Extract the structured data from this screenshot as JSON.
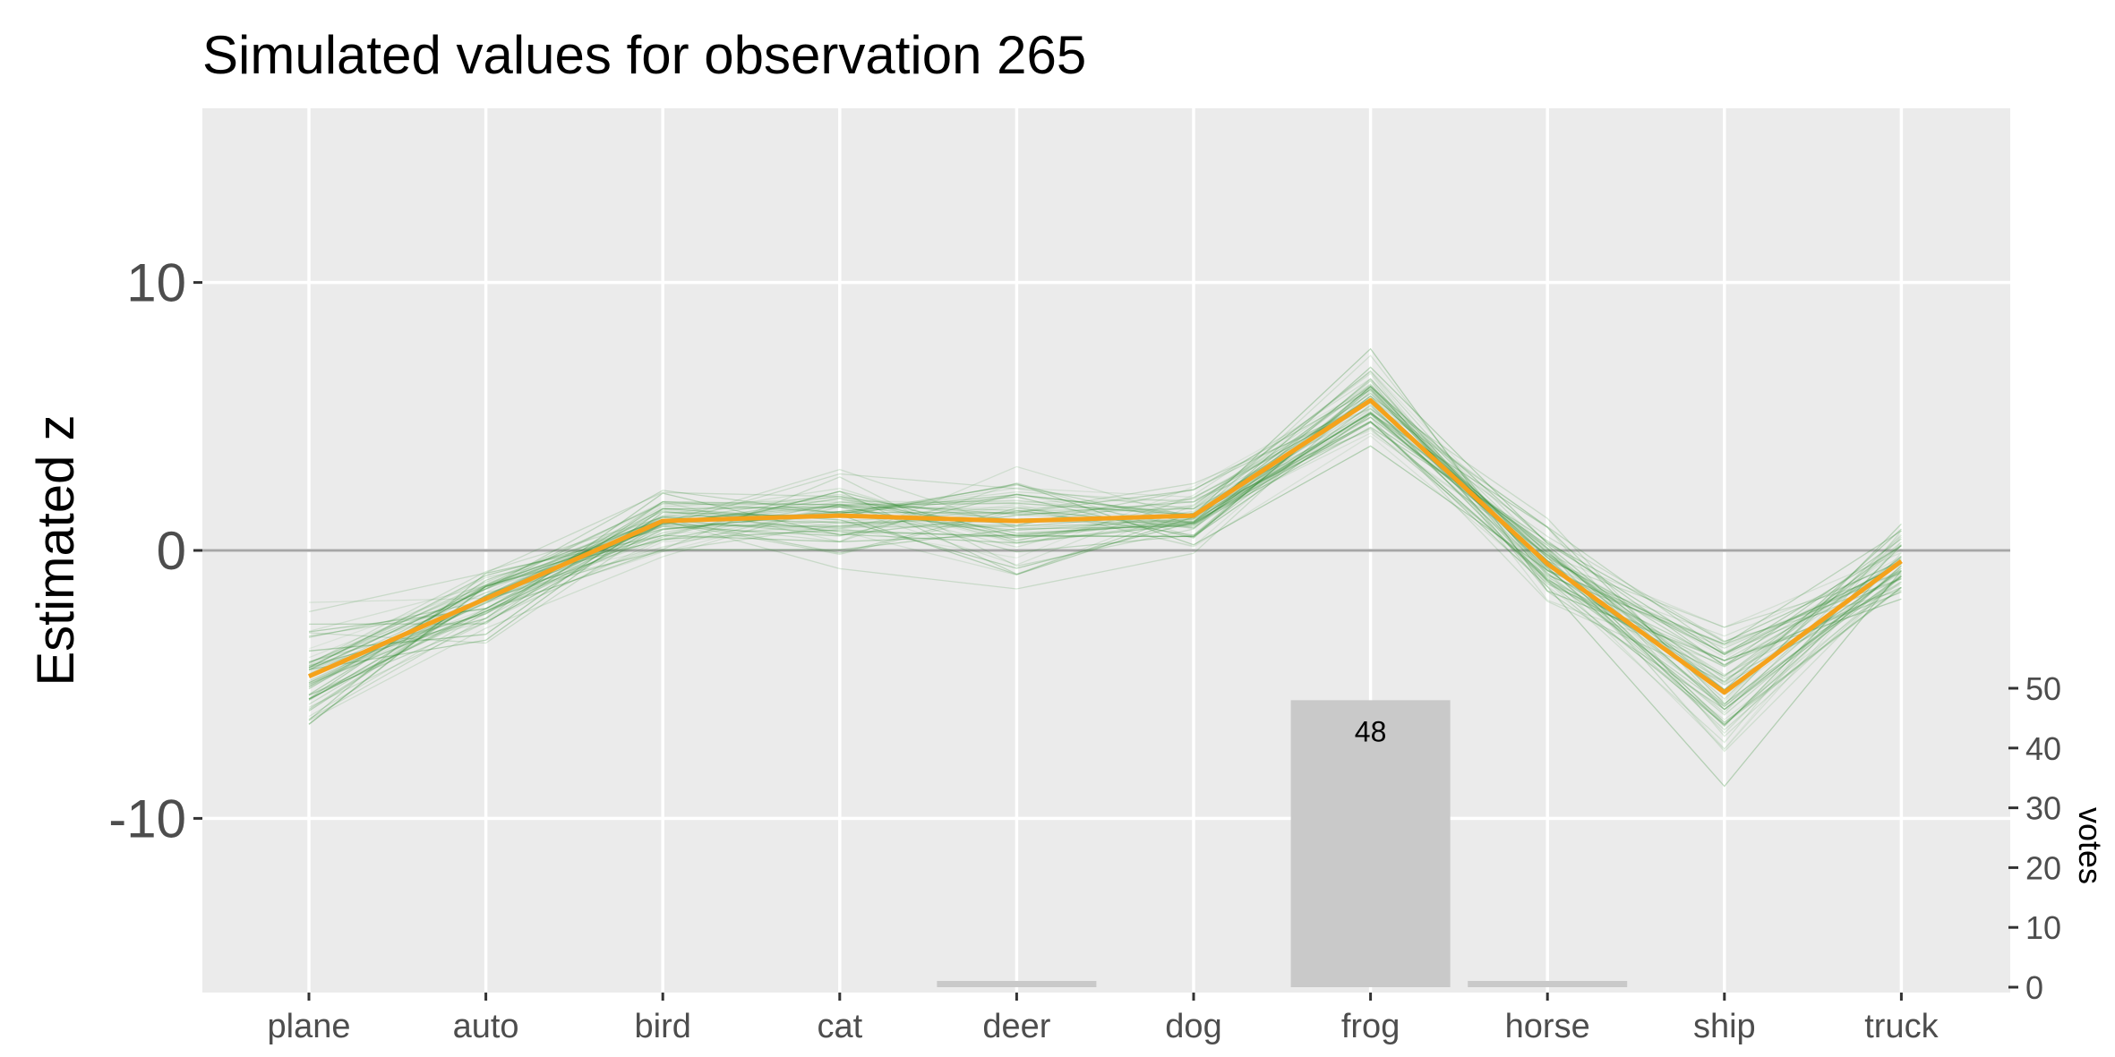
{
  "chart_data": {
    "type": "line",
    "title": "Simulated values for observation 265",
    "ylabel": "Estimated z",
    "secondary_ylabel": "votes",
    "categories": [
      "plane",
      "auto",
      "bird",
      "cat",
      "deer",
      "dog",
      "frog",
      "horse",
      "ship",
      "truck"
    ],
    "ylim": [
      -16.5,
      16.5
    ],
    "yticks": [
      -10,
      0,
      10
    ],
    "ytick_labels": [
      "-10",
      "0",
      "10"
    ],
    "votes_ticks": [
      0,
      10,
      20,
      30,
      40,
      50
    ],
    "votes_ylim": [
      0,
      50
    ],
    "grid": true,
    "reference_line": 0,
    "series": [
      {
        "values": [
          -4.7,
          -1.8,
          1.1,
          1.3,
          1.1,
          1.3,
          5.6,
          -0.5,
          -5.3,
          -0.4
        ],
        "color": "#f5a21b"
      }
    ],
    "simulations": {
      "count": 60,
      "color": "#2e8b2e",
      "spread": [
        1.6,
        1.1,
        0.9,
        1.1,
        1.5,
        0.8,
        1.1,
        1.0,
        1.8,
        0.9
      ]
    },
    "votes": {
      "categories": [
        "deer",
        "frog",
        "horse"
      ],
      "values": [
        1,
        48,
        1
      ],
      "labels": [
        "",
        "48",
        ""
      ],
      "color": "#c9c9c9"
    }
  },
  "colors": {
    "panel_background": "#ebebeb",
    "grid_line": "#ffffff",
    "zero_line": "#a6a6a6"
  }
}
